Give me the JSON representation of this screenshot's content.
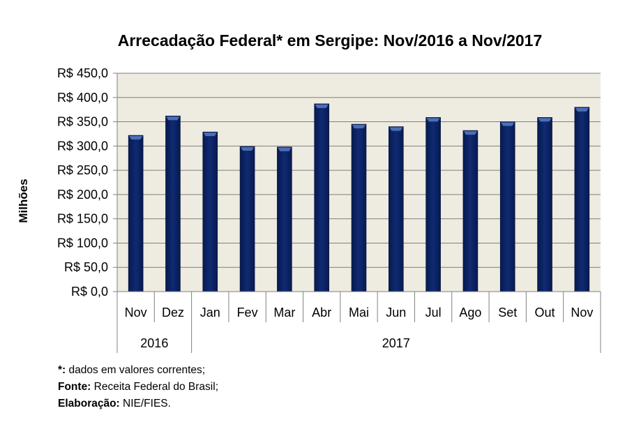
{
  "chart_data": {
    "type": "bar",
    "title": "Arrecadação Federal* em Sergipe: Nov/2016 a Nov/2017",
    "ylabel": "Milhões",
    "xlabel": "",
    "ylim": [
      0,
      450
    ],
    "ytick_step": 50,
    "yticks": [
      "R$ 0,0",
      "R$ 50,0",
      "R$ 100,0",
      "R$ 150,0",
      "R$ 200,0",
      "R$ 250,0",
      "R$ 300,0",
      "R$ 350,0",
      "R$ 400,0",
      "R$ 450,0"
    ],
    "grid": true,
    "legend": "none",
    "categories": [
      "Nov",
      "Dez",
      "Jan",
      "Fev",
      "Mar",
      "Abr",
      "Mai",
      "Jun",
      "Jul",
      "Ago",
      "Set",
      "Out",
      "Nov"
    ],
    "groups": [
      {
        "label": "2016",
        "count": 2
      },
      {
        "label": "2017",
        "count": 11
      }
    ],
    "series": [
      {
        "name": "Arrecadação Federal",
        "values": [
          322,
          362,
          329,
          299,
          298,
          387,
          345,
          340,
          359,
          332,
          350,
          359,
          380
        ]
      }
    ],
    "colors": {
      "bar": "#0d2466",
      "bar_highlight": "#4a6fb5",
      "plot_background": "#eeebe0",
      "gridline": "#7f7f7f",
      "axis": "#808080"
    }
  },
  "footnotes": [
    {
      "label": "*:",
      "text": " dados em valores correntes;"
    },
    {
      "label": "Fonte:",
      "text": " Receita Federal do Brasil;"
    },
    {
      "label": "Elaboração:",
      "text": " NIE/FIES."
    }
  ]
}
